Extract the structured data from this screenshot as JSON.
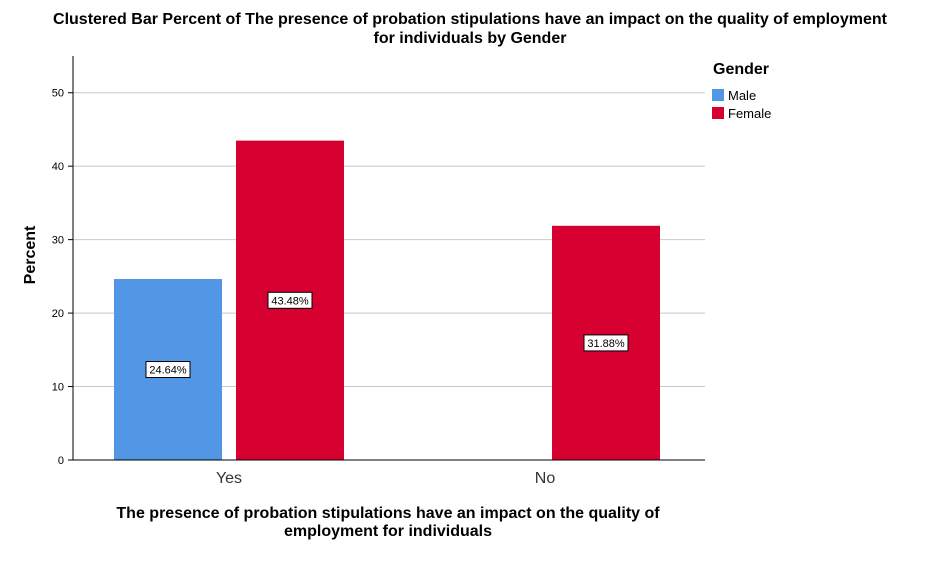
{
  "chart_data": {
    "type": "bar",
    "title_lines": [
      "Clustered Bar Percent of The presence of probation stipulations have an impact on the quality of employment",
      "for individuals by Gender"
    ],
    "xlabel_lines": [
      "The presence of probation stipulations have an impact on the quality of",
      "employment for individuals"
    ],
    "ylabel": "Percent",
    "categories": [
      "Yes",
      "No"
    ],
    "series": [
      {
        "name": "Male",
        "color": "#5296e6",
        "values": [
          24.64,
          null
        ],
        "labels": [
          "24.64%",
          null
        ]
      },
      {
        "name": "Female",
        "color": "#d60031",
        "values": [
          43.48,
          31.88
        ],
        "labels": [
          "43.48%",
          "31.88%"
        ]
      }
    ],
    "ylim": [
      0,
      55
    ],
    "yticks": [
      0,
      10,
      20,
      30,
      40,
      50
    ],
    "grid": true,
    "legend": {
      "title": "Gender",
      "position": "right"
    }
  }
}
